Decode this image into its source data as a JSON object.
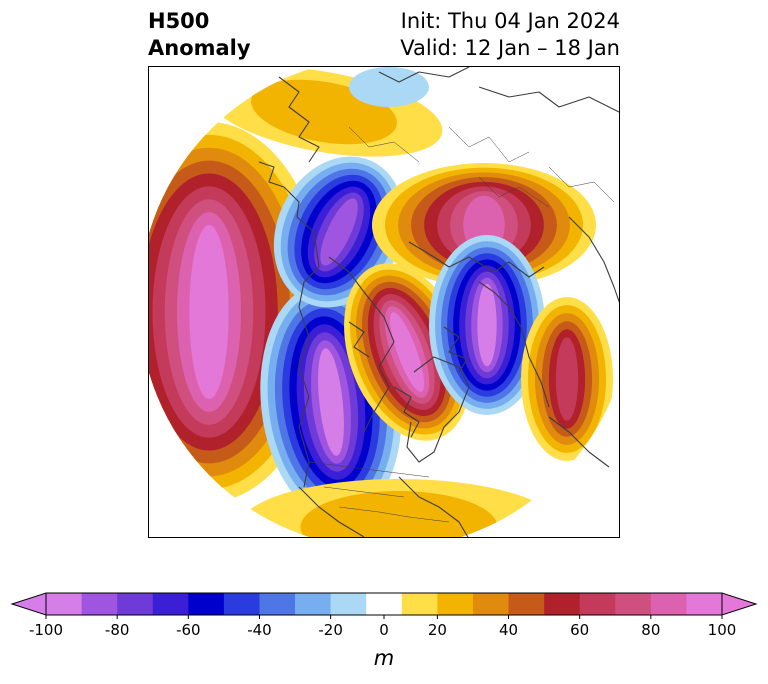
{
  "title": {
    "left_line1": "H500",
    "left_line2": "Anomaly",
    "right_line1": "Init: Thu 04 Jan 2024",
    "right_line2": "Valid: 12 Jan – 18 Jan"
  },
  "colorbar": {
    "units_label": "m",
    "tick_labels": [
      "-100",
      "-80",
      "-60",
      "-40",
      "-20",
      "0",
      "20",
      "40",
      "60",
      "80",
      "100"
    ],
    "levels": [
      -100,
      -90,
      -80,
      -70,
      -60,
      -50,
      -40,
      -30,
      -20,
      -10,
      10,
      20,
      30,
      40,
      50,
      60,
      70,
      80,
      90,
      100
    ],
    "colors": [
      "#d67ee8",
      "#9f55df",
      "#6e3bd8",
      "#3b1fd6",
      "#0000cd",
      "#2a3ce0",
      "#4f76e6",
      "#77aef0",
      "#aad8f5",
      "#ffffff",
      "#ffde47",
      "#f2b400",
      "#e08a0e",
      "#c65b19",
      "#b0212b",
      "#c43a5a",
      "#cf4f7f",
      "#dc62b0",
      "#e478d8"
    ],
    "extend": "both"
  },
  "map": {
    "projection": "north-polar-stereographic",
    "coastline_color": "#3d3d3d"
  }
}
